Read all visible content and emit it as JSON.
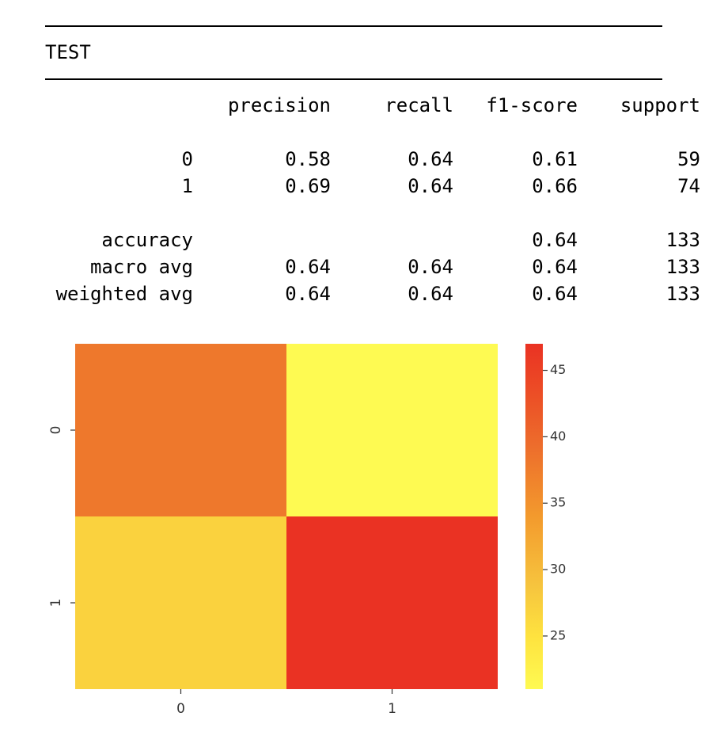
{
  "report": {
    "title": "TEST",
    "headers": [
      "precision",
      "recall",
      "f1-score",
      "support"
    ],
    "class_rows": [
      {
        "label": "0",
        "precision": "0.58",
        "recall": "0.64",
        "f1": "0.61",
        "support": "59"
      },
      {
        "label": "1",
        "precision": "0.69",
        "recall": "0.64",
        "f1": "0.66",
        "support": "74"
      }
    ],
    "summary_rows": [
      {
        "label": "accuracy",
        "precision": "",
        "recall": "",
        "f1": "0.64",
        "support": "133"
      },
      {
        "label": "macro avg",
        "precision": "0.64",
        "recall": "0.64",
        "f1": "0.64",
        "support": "133"
      },
      {
        "label": "weighted avg",
        "precision": "0.64",
        "recall": "0.64",
        "f1": "0.64",
        "support": "133"
      }
    ]
  },
  "chart_data": {
    "type": "heatmap",
    "x_categories": [
      "0",
      "1"
    ],
    "y_categories": [
      "0",
      "1"
    ],
    "values": [
      [
        38,
        21
      ],
      [
        27,
        47
      ]
    ],
    "colorscale": "YlOrRd",
    "colorbar": {
      "min": 21,
      "max": 47,
      "ticks": [
        25,
        30,
        35,
        40,
        45
      ]
    },
    "colors": {
      "low": "#fefa52",
      "mid": "#f39a2d",
      "high": "#ec3223"
    },
    "title": "",
    "xlabel": "",
    "ylabel": ""
  }
}
